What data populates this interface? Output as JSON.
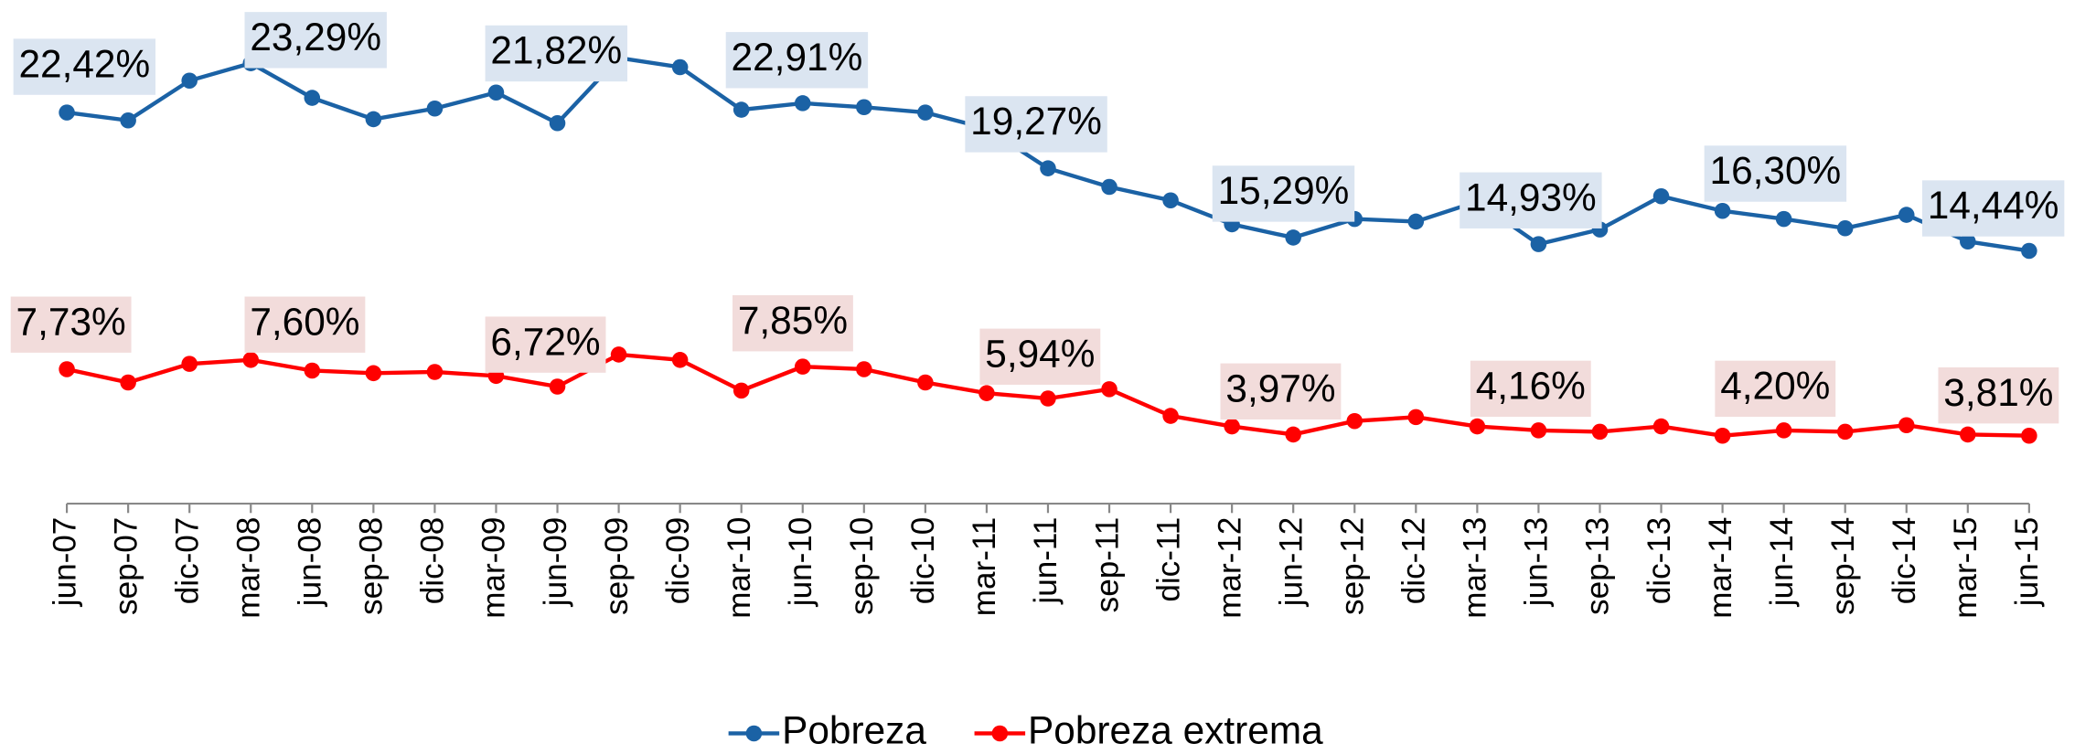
{
  "chart_data": {
    "type": "line",
    "categories": [
      "jun-07",
      "sep-07",
      "dic-07",
      "mar-08",
      "jun-08",
      "sep-08",
      "dic-08",
      "mar-09",
      "jun-09",
      "sep-09",
      "dic-09",
      "mar-10",
      "jun-10",
      "sep-10",
      "dic-10",
      "mar-11",
      "jun-11",
      "sep-11",
      "dic-11",
      "mar-12",
      "jun-12",
      "sep-12",
      "dic-12",
      "mar-13",
      "jun-13",
      "sep-13",
      "dic-13",
      "mar-14",
      "jun-14",
      "sep-14",
      "dic-14",
      "mar-15",
      "jun-15"
    ],
    "ylim": [
      0,
      29
    ],
    "legend": "bottom",
    "series": [
      {
        "name": "Pobreza",
        "color": "#1b62a5",
        "label_color": "#dbe5f1",
        "values": [
          22.47,
          22.01,
          24.32,
          25.33,
          23.32,
          22.08,
          22.7,
          23.63,
          21.85,
          25.64,
          25.1,
          22.63,
          23.01,
          22.78,
          22.47,
          21.54,
          19.23,
          18.15,
          17.37,
          15.98,
          15.21,
          16.29,
          16.14,
          17.3,
          14.83,
          15.68,
          17.61,
          16.76,
          16.29,
          15.75,
          16.53,
          14.98,
          14.44
        ],
        "annotations": [
          "22,42%",
          "23,29%",
          "21,82%",
          "22,91%",
          "19,27%",
          "15,29%",
          "14,93%",
          "16,30%",
          "14,44%"
        ]
      },
      {
        "name": "Pobreza extrema",
        "color": "#ff0000",
        "label_color": "#f2dcdb",
        "values": [
          7.57,
          6.8,
          7.88,
          8.11,
          7.49,
          7.34,
          7.41,
          7.18,
          6.56,
          8.42,
          8.11,
          6.33,
          7.72,
          7.57,
          6.8,
          6.18,
          5.87,
          6.41,
          4.86,
          4.25,
          3.78,
          4.56,
          4.79,
          4.25,
          4.02,
          3.94,
          4.25,
          3.71,
          4.02,
          3.94,
          4.32,
          3.78,
          3.71
        ],
        "annotations": [
          "7,73%",
          "7,60%",
          "6,72%",
          "7,85%",
          "5,94%",
          "3,97%",
          "4,16%",
          "4,20%",
          "3,81%"
        ]
      }
    ]
  }
}
